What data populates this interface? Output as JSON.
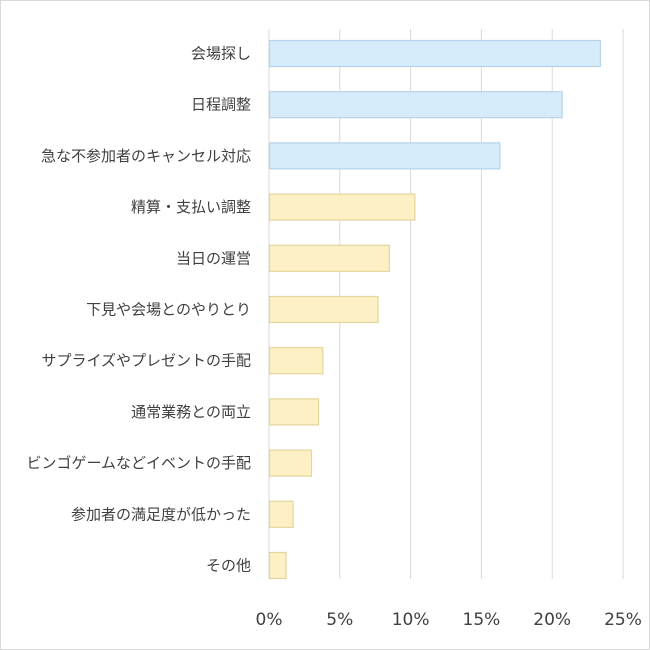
{
  "chart_data": {
    "type": "bar",
    "orientation": "horizontal",
    "title": "",
    "xlabel": "",
    "ylabel": "",
    "xlim": [
      0,
      25
    ],
    "x_ticks": [
      0,
      5,
      10,
      15,
      20,
      25
    ],
    "x_tick_labels": [
      "0%",
      "5%",
      "10%",
      "15%",
      "20%",
      "25%"
    ],
    "grid": "vertical",
    "legend": "none",
    "categories": [
      "会場探し",
      "日程調整",
      "急な不参加者のキャンセル対応",
      "精算・支払い調整",
      "当日の運営",
      "下見や会場とのやりとり",
      "サプライズやプレゼントの手配",
      "通常業務との両立",
      "ビンゴゲームなどイベントの手配",
      "参加者の満足度が低かった",
      "その他"
    ],
    "values": [
      23.4,
      20.7,
      16.3,
      10.3,
      8.5,
      7.7,
      3.8,
      3.5,
      3.0,
      1.7,
      1.2
    ],
    "bar_colors": [
      "#d6ecfb",
      "#d6ecfb",
      "#d6ecfb",
      "#fdf0c4",
      "#fdf0c4",
      "#fdf0c4",
      "#fdf0c4",
      "#fdf0c4",
      "#fdf0c4",
      "#fdf0c4",
      "#fdf0c4"
    ],
    "bar_border_colors": [
      "#b4d3ea",
      "#b4d3ea",
      "#b4d3ea",
      "#e5d49a",
      "#e5d49a",
      "#e5d49a",
      "#e5d49a",
      "#e5d49a",
      "#e5d49a",
      "#e5d49a",
      "#e5d49a"
    ],
    "gridline_color": "#d9d9d9",
    "text_color": "#404040"
  }
}
